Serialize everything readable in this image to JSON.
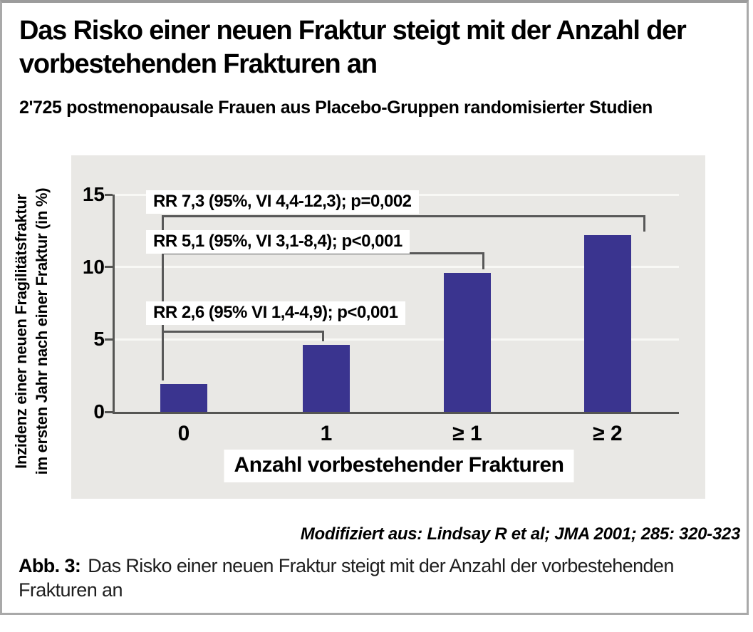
{
  "header": {
    "title": "Das Risko einer neuen Fraktur steigt mit der Anzahl der vorbestehenden Frakturen an",
    "subtitle": "2'725 postmenopausale Frauen aus Placebo-Gruppen randomisierter Studien"
  },
  "chart_data": {
    "type": "bar",
    "title": "Das Risko einer neuen Fraktur steigt mit der Anzahl der vorbestehenden Frakturen an",
    "subtitle": "2'725 postmenopausale Frauen aus Placebo-Gruppen randomisierter Studien",
    "categories": [
      "0",
      "1",
      "≥ 1",
      "≥ 2"
    ],
    "values": [
      1.9,
      4.6,
      9.6,
      12.2
    ],
    "xlabel": "Anzahl vorbestehender Frakturen",
    "ylabel": "Inzidenz einer neuen Fragilitätsfraktur im ersten Jahr nach einer Fraktur (in %)",
    "ylabel_lines": [
      "Inzidenz einer neuen Fragilitätsfraktur",
      "im ersten Jahr nach einer Fraktur (in %)"
    ],
    "ylim": [
      0,
      15
    ],
    "yticks": [
      0,
      5,
      10,
      15
    ],
    "grid": "horizontal white gridlines at 5, 10, 15",
    "legend": "none",
    "bar_color": "#3a348f",
    "panel_bg": "#e9e8e5",
    "comparisons": [
      {
        "label": "RR 2,6 (95% VI 1,4-4,9); p<0,001",
        "from_category": "0",
        "to_category": "1",
        "bracket_level": 5.6
      },
      {
        "label": "RR 5,1 (95%, VI 3,1-8,4); p<0,001",
        "from_category": "0",
        "to_category": "≥ 1",
        "bracket_level": 11.0
      },
      {
        "label": "RR 7,3 (95%, VI 4,4-12,3); p=0,002",
        "from_category": "0",
        "to_category": "≥ 2",
        "bracket_level": 13.6
      }
    ],
    "source_note": "Modifiziert aus: Lindsay R et al; JMA 2001; 285: 320-323"
  },
  "footer": {
    "caption_label": "Abb. 3:",
    "caption_text": "Das Risko einer neuen Fraktur steigt mit der Anzahl der vorbestehenden Frakturen an"
  }
}
